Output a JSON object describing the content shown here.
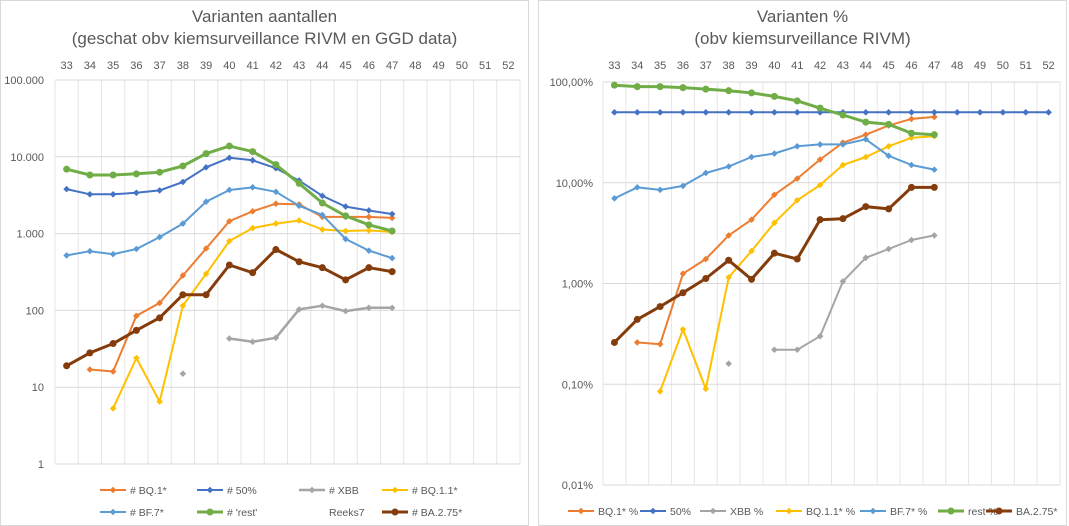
{
  "chart_data": [
    {
      "type": "line",
      "title": "Varianten aantallen",
      "subtitle": "(geschat obv kiemsurveillance RIVM en GGD data)",
      "x_categories": [
        "33",
        "34",
        "35",
        "36",
        "37",
        "38",
        "39",
        "40",
        "41",
        "42",
        "43",
        "44",
        "45",
        "46",
        "47",
        "48",
        "49",
        "50",
        "51",
        "52"
      ],
      "y_scale": "log",
      "ylim": [
        1,
        100000
      ],
      "y_ticks": [
        {
          "value": 1,
          "label": "1"
        },
        {
          "value": 10,
          "label": "10"
        },
        {
          "value": 100,
          "label": "100"
        },
        {
          "value": 1000,
          "label": "1.000"
        },
        {
          "value": 10000,
          "label": "10.000"
        },
        {
          "value": 100000,
          "label": "100.000"
        }
      ],
      "grid": true,
      "legend_position": "bottom",
      "series": [
        {
          "name": "# BQ.1*",
          "color": "#ED7D31",
          "width": 2,
          "values": [
            null,
            17,
            16,
            85,
            125,
            285,
            640,
            1450,
            1950,
            2450,
            2400,
            1650,
            1650,
            1650,
            1600,
            null,
            null,
            null,
            null,
            null
          ]
        },
        {
          "name": "# 50%",
          "color": "#4472C4",
          "width": 2,
          "values": [
            3800,
            3250,
            3250,
            3400,
            3650,
            4700,
            7300,
            9700,
            9000,
            7100,
            4900,
            3100,
            2250,
            2000,
            1800,
            null,
            null,
            null,
            null,
            null
          ]
        },
        {
          "name": "# XBB",
          "color": "#A5A5A5",
          "width": 2.5,
          "values": [
            null,
            null,
            null,
            null,
            null,
            15,
            null,
            43,
            39,
            44,
            103,
            115,
            98,
            108,
            108,
            null,
            null,
            null,
            null,
            null
          ]
        },
        {
          "name": "# BQ.1.1*",
          "color": "#FFC000",
          "width": 2,
          "values": [
            null,
            null,
            5.3,
            24,
            6.5,
            115,
            300,
            800,
            1180,
            1350,
            1480,
            1130,
            1080,
            1100,
            1050,
            null,
            null,
            null,
            null,
            null
          ]
        },
        {
          "name": "# BF.7*",
          "color": "#5B9BD5",
          "width": 2,
          "values": [
            520,
            590,
            540,
            630,
            900,
            1350,
            2600,
            3700,
            4000,
            3500,
            2300,
            1750,
            850,
            600,
            480,
            null,
            null,
            null,
            null,
            null
          ]
        },
        {
          "name": "# 'rest'",
          "color": "#70AD47",
          "width": 3,
          "values": [
            6900,
            5800,
            5800,
            6000,
            6300,
            7600,
            11000,
            13800,
            11700,
            7900,
            4500,
            2500,
            1700,
            1300,
            1080,
            null,
            null,
            null,
            null,
            null
          ]
        },
        {
          "name": "Reeks7",
          "color": "#264478",
          "width": 2,
          "values": [
            null,
            null,
            null,
            null,
            null,
            null,
            null,
            null,
            null,
            null,
            null,
            null,
            null,
            null,
            null,
            null,
            null,
            null,
            null,
            null
          ]
        },
        {
          "name": "# BA.2.75*",
          "color": "#843C0C",
          "width": 3,
          "values": [
            19,
            28,
            37,
            55,
            80,
            160,
            160,
            390,
            310,
            620,
            430,
            360,
            250,
            360,
            320,
            null,
            null,
            null,
            null,
            null
          ]
        }
      ]
    },
    {
      "type": "line",
      "title": "Varianten %",
      "subtitle": "(obv kiemsurveillance RIVM)",
      "x_categories": [
        "33",
        "34",
        "35",
        "36",
        "37",
        "38",
        "39",
        "40",
        "41",
        "42",
        "43",
        "44",
        "45",
        "46",
        "47",
        "48",
        "49",
        "50",
        "51",
        "52"
      ],
      "y_scale": "log",
      "ylim": [
        0.01,
        100
      ],
      "y_ticks": [
        {
          "value": 0.01,
          "label": "0,01%"
        },
        {
          "value": 0.1,
          "label": "0,10%"
        },
        {
          "value": 1,
          "label": "1,00%"
        },
        {
          "value": 10,
          "label": "10,00%"
        },
        {
          "value": 100,
          "label": "100,00%"
        }
      ],
      "grid": true,
      "legend_position": "bottom",
      "series": [
        {
          "name": "BQ.1* %",
          "color": "#ED7D31",
          "width": 2,
          "values": [
            null,
            0.26,
            0.25,
            1.25,
            1.75,
            3.0,
            4.3,
            7.6,
            11,
            17,
            25,
            30,
            37,
            43,
            45,
            null,
            null,
            null,
            null,
            null
          ]
        },
        {
          "name": "50%",
          "color": "#4472C4",
          "width": 2,
          "values": [
            50,
            50,
            50,
            50,
            50,
            50,
            50,
            50,
            50,
            50,
            50,
            50,
            50,
            50,
            50,
            50,
            50,
            50,
            50,
            50
          ]
        },
        {
          "name": "XBB %",
          "color": "#A5A5A5",
          "width": 2,
          "values": [
            null,
            null,
            null,
            null,
            null,
            0.16,
            null,
            0.22,
            0.22,
            0.3,
            1.05,
            1.8,
            2.2,
            2.7,
            3.0,
            null,
            null,
            null,
            null,
            null
          ]
        },
        {
          "name": "BQ.1.1* %",
          "color": "#FFC000",
          "width": 2,
          "values": [
            null,
            null,
            0.085,
            0.35,
            0.09,
            1.15,
            2.1,
            4.0,
            6.7,
            9.5,
            15,
            18,
            23,
            28,
            29,
            null,
            null,
            null,
            null,
            null
          ]
        },
        {
          "name": "BF.7* %",
          "color": "#5B9BD5",
          "width": 2,
          "values": [
            7,
            9,
            8.5,
            9.3,
            12.5,
            14.5,
            18,
            19.5,
            23,
            24,
            24,
            27,
            18.5,
            15,
            13.5,
            null,
            null,
            null,
            null,
            null
          ]
        },
        {
          "name": "rest %",
          "color": "#70AD47",
          "width": 3,
          "values": [
            93,
            90,
            90,
            88,
            85,
            82,
            78,
            72,
            65,
            55,
            47,
            40,
            38,
            31,
            30,
            null,
            null,
            null,
            null,
            null
          ]
        },
        {
          "name": "BA.2.75*",
          "color": "#843C0C",
          "width": 3,
          "values": [
            0.26,
            0.44,
            0.59,
            0.81,
            1.12,
            1.7,
            1.1,
            2.0,
            1.75,
            4.3,
            4.4,
            5.8,
            5.5,
            9.0,
            9.0,
            null,
            null,
            null,
            null,
            null
          ]
        }
      ]
    }
  ]
}
